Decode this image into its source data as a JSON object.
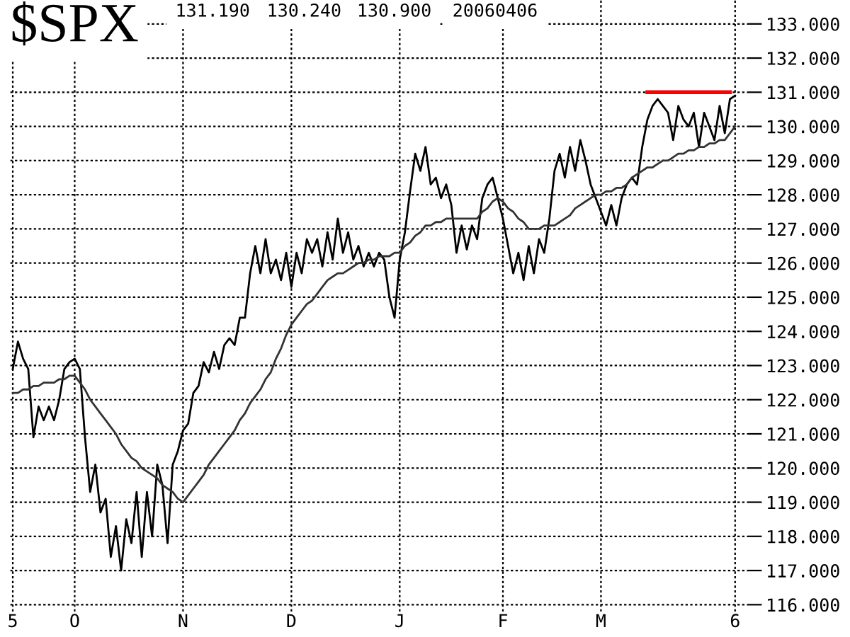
{
  "chart_data": {
    "type": "line",
    "title": "$SPX",
    "annotations": [
      "131.190",
      "130.240",
      "130.900",
      "20060406"
    ],
    "categories": [
      "5",
      null,
      null,
      null,
      null,
      null,
      null,
      null,
      null,
      null,
      null,
      null,
      "O",
      null,
      null,
      null,
      null,
      null,
      null,
      null,
      null,
      null,
      null,
      null,
      null,
      null,
      null,
      null,
      null,
      null,
      null,
      null,
      null,
      "N",
      null,
      null,
      null,
      null,
      null,
      null,
      null,
      null,
      null,
      null,
      null,
      null,
      null,
      null,
      null,
      null,
      null,
      null,
      null,
      null,
      "D",
      null,
      null,
      null,
      null,
      null,
      null,
      null,
      null,
      null,
      null,
      null,
      null,
      null,
      null,
      null,
      null,
      null,
      null,
      null,
      null,
      "J",
      null,
      null,
      null,
      null,
      null,
      null,
      null,
      null,
      null,
      null,
      null,
      null,
      null,
      null,
      null,
      null,
      null,
      null,
      null,
      "F",
      null,
      null,
      null,
      null,
      null,
      null,
      null,
      null,
      null,
      null,
      null,
      null,
      null,
      null,
      null,
      null,
      null,
      null,
      "M",
      null,
      null,
      null,
      null,
      null,
      null,
      null,
      null,
      null,
      null,
      null,
      null,
      null,
      null,
      null,
      null,
      null,
      null,
      null,
      null,
      null,
      null,
      null,
      null,
      null,
      "6"
    ],
    "ylim": [
      115.8,
      133.7
    ],
    "yticks": [
      {
        "value": 116,
        "label": "116.000"
      },
      {
        "value": 117,
        "label": "117.000"
      },
      {
        "value": 118,
        "label": "118.000"
      },
      {
        "value": 119,
        "label": "119.000"
      },
      {
        "value": 120,
        "label": "120.000"
      },
      {
        "value": 121,
        "label": "121.000"
      },
      {
        "value": 122,
        "label": "122.000"
      },
      {
        "value": 123,
        "label": "123.000"
      },
      {
        "value": 124,
        "label": "124.000"
      },
      {
        "value": 125,
        "label": "125.000"
      },
      {
        "value": 126,
        "label": "126.000"
      },
      {
        "value": 127,
        "label": "127.000"
      },
      {
        "value": 128,
        "label": "128.000"
      },
      {
        "value": 129,
        "label": "129.000"
      },
      {
        "value": 130,
        "label": "130.000"
      },
      {
        "value": 131,
        "label": "131.000"
      },
      {
        "value": 132,
        "label": "132.000"
      },
      {
        "value": 133,
        "label": "133.000"
      }
    ],
    "grid": true,
    "line_style": "solid",
    "marker": "none",
    "series": [
      {
        "color": "#000000",
        "values": [
          122.9,
          123.7,
          123.2,
          122.9,
          120.9,
          121.8,
          121.4,
          121.8,
          121.4,
          122.0,
          122.9,
          123.1,
          123.2,
          122.9,
          120.9,
          119.3,
          120.1,
          118.7,
          119.1,
          117.4,
          118.3,
          117.0,
          118.5,
          117.8,
          119.3,
          117.4,
          119.3,
          118.0,
          120.1,
          119.5,
          117.8,
          120.1,
          120.5,
          121.1,
          121.3,
          122.2,
          122.4,
          123.1,
          122.8,
          123.4,
          122.9,
          123.6,
          123.8,
          123.6,
          124.4,
          124.4,
          125.7,
          126.5,
          125.7,
          126.7,
          125.7,
          126.1,
          125.5,
          126.3,
          125.3,
          126.3,
          125.7,
          126.7,
          126.3,
          126.7,
          125.9,
          126.9,
          126.1,
          127.3,
          126.3,
          126.9,
          126.1,
          126.5,
          125.9,
          126.3,
          125.9,
          126.3,
          126.1,
          125.0,
          124.4,
          126.1,
          126.9,
          128.1,
          129.2,
          128.7,
          129.4,
          128.3,
          128.5,
          127.9,
          128.3,
          127.7,
          126.3,
          127.1,
          126.4,
          127.1,
          126.7,
          127.9,
          128.3,
          128.5,
          127.9,
          127.3,
          126.5,
          125.7,
          126.3,
          125.5,
          126.5,
          125.7,
          126.7,
          126.3,
          127.3,
          128.7,
          129.2,
          128.5,
          129.4,
          128.7,
          129.6,
          129.0,
          128.3,
          127.9,
          127.5,
          127.1,
          127.7,
          127.1,
          127.9,
          128.3,
          128.5,
          128.3,
          129.4,
          130.2,
          130.6,
          130.8,
          130.6,
          130.4,
          129.6,
          130.6,
          130.2,
          130.0,
          130.4,
          129.4,
          130.4,
          130.0,
          129.6,
          130.6,
          129.8,
          130.8,
          130.9
        ]
      },
      {
        "color": "#333333",
        "values": [
          122.2,
          122.2,
          122.3,
          122.3,
          122.4,
          122.4,
          122.5,
          122.5,
          122.5,
          122.6,
          122.6,
          122.7,
          122.7,
          122.5,
          122.3,
          122.0,
          121.8,
          121.6,
          121.4,
          121.2,
          121.0,
          120.7,
          120.5,
          120.3,
          120.2,
          120.0,
          119.9,
          119.8,
          119.7,
          119.5,
          119.4,
          119.3,
          119.1,
          119.0,
          119.2,
          119.4,
          119.6,
          119.8,
          120.1,
          120.3,
          120.5,
          120.7,
          120.9,
          121.1,
          121.4,
          121.6,
          121.9,
          122.1,
          122.3,
          122.6,
          122.8,
          123.2,
          123.5,
          123.9,
          124.2,
          124.4,
          124.6,
          124.8,
          124.9,
          125.1,
          125.3,
          125.5,
          125.6,
          125.7,
          125.7,
          125.8,
          125.9,
          126.0,
          126.0,
          126.1,
          126.1,
          126.2,
          126.2,
          126.2,
          126.3,
          126.3,
          126.5,
          126.6,
          126.8,
          126.9,
          127.1,
          127.1,
          127.2,
          127.2,
          127.3,
          127.3,
          127.3,
          127.3,
          127.3,
          127.3,
          127.3,
          127.5,
          127.6,
          127.8,
          127.9,
          127.8,
          127.6,
          127.5,
          127.3,
          127.2,
          127.0,
          127.0,
          127.0,
          127.1,
          127.1,
          127.1,
          127.2,
          127.3,
          127.4,
          127.6,
          127.7,
          127.8,
          127.9,
          128.0,
          128.0,
          128.1,
          128.1,
          128.2,
          128.2,
          128.3,
          128.5,
          128.6,
          128.7,
          128.8,
          128.8,
          128.9,
          129.0,
          129.0,
          129.1,
          129.2,
          129.2,
          129.3,
          129.3,
          129.4,
          129.4,
          129.5,
          129.5,
          129.6,
          129.6,
          129.8,
          130.0
        ]
      },
      {
        "color": "#ff0000",
        "values": [
          null,
          null,
          null,
          null,
          null,
          null,
          null,
          null,
          null,
          null,
          null,
          null,
          null,
          null,
          null,
          null,
          null,
          null,
          null,
          null,
          null,
          null,
          null,
          null,
          null,
          null,
          null,
          null,
          null,
          null,
          null,
          null,
          null,
          null,
          null,
          null,
          null,
          null,
          null,
          null,
          null,
          null,
          null,
          null,
          null,
          null,
          null,
          null,
          null,
          null,
          null,
          null,
          null,
          null,
          null,
          null,
          null,
          null,
          null,
          null,
          null,
          null,
          null,
          null,
          null,
          null,
          null,
          null,
          null,
          null,
          null,
          null,
          null,
          null,
          null,
          null,
          null,
          null,
          null,
          null,
          null,
          null,
          null,
          null,
          null,
          null,
          null,
          null,
          null,
          null,
          null,
          null,
          null,
          null,
          null,
          null,
          null,
          null,
          null,
          null,
          null,
          null,
          null,
          null,
          null,
          null,
          null,
          null,
          null,
          null,
          null,
          null,
          null,
          null,
          null,
          null,
          null,
          null,
          null,
          null,
          null,
          null,
          null,
          131.0,
          131.0,
          131.0,
          131.0,
          131.0,
          131.0,
          131.0,
          131.0,
          131.0,
          131.0,
          131.0,
          131.0,
          131.0,
          131.0,
          131.0,
          131.0,
          131.0,
          null
        ]
      }
    ]
  }
}
